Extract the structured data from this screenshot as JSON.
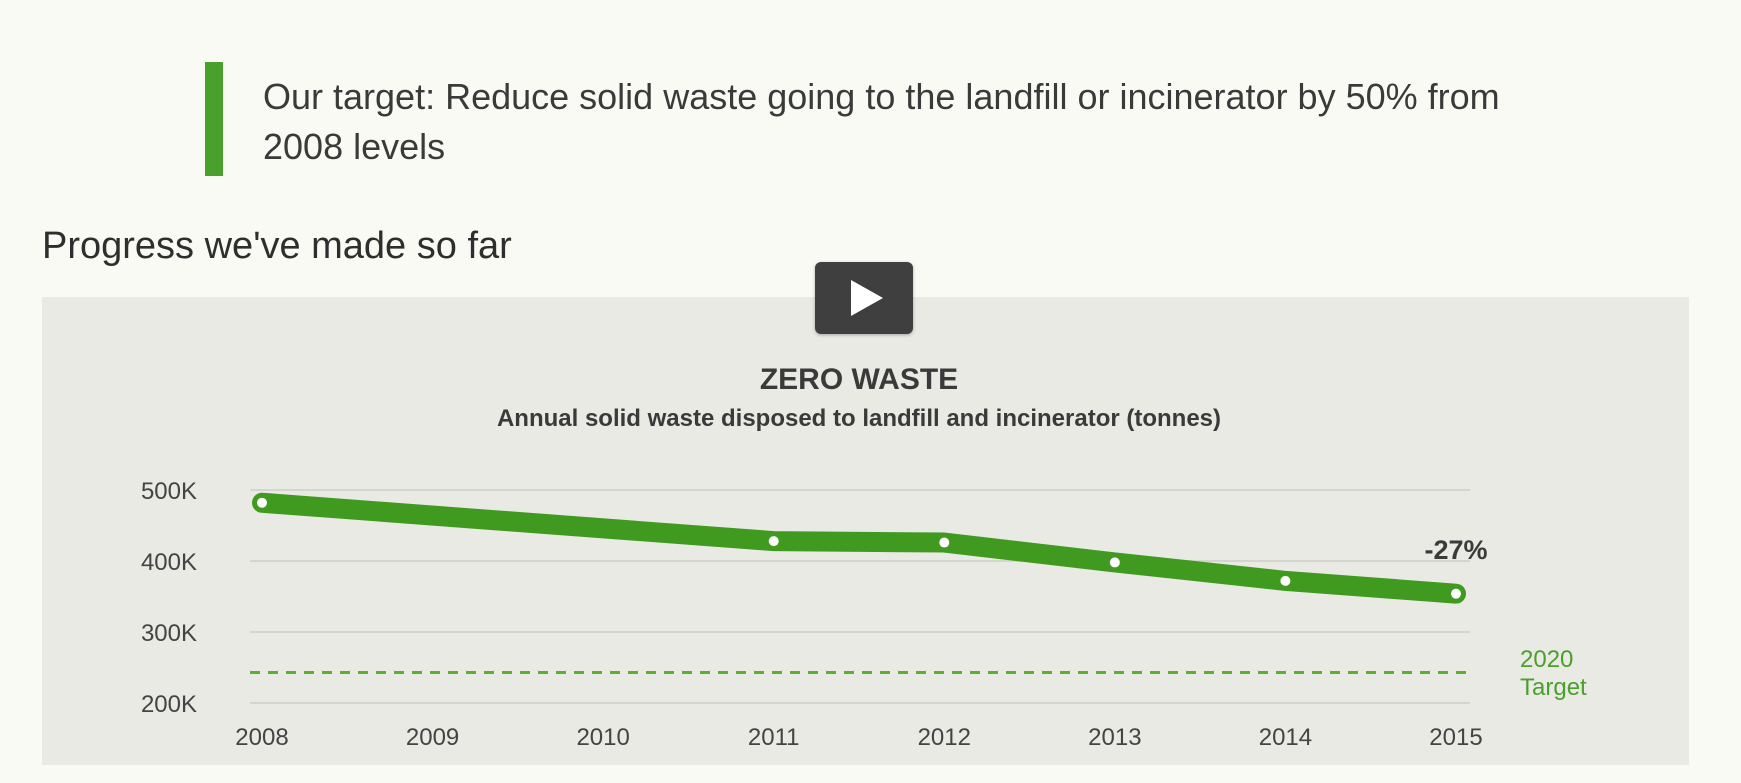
{
  "target": {
    "text": "Our target: Reduce solid waste going to the landfill or incinerator by 50% from 2008 levels"
  },
  "progress_title": "Progress we've made so far",
  "play_icon": "play-icon",
  "colors": {
    "accent": "#4aa02c",
    "line": "#3f9a1f",
    "target_label": "#4aa02c",
    "grid": "#d4d5cf",
    "panel": "#e9eae4"
  },
  "chart_data": {
    "type": "line",
    "title": "ZERO WASTE",
    "subtitle": "Annual solid waste disposed to landfill and incinerator (tonnes)",
    "x": [
      "2008",
      "2009",
      "2010",
      "2011",
      "2012",
      "2013",
      "2014",
      "2015"
    ],
    "series": [
      {
        "x": [
          "2008",
          "2011",
          "2012",
          "2013",
          "2014",
          "2015"
        ],
        "values": [
          482000,
          428000,
          426000,
          398000,
          372000,
          354000
        ]
      }
    ],
    "ylim": [
      200000,
      500000
    ],
    "yticks": [
      200000,
      300000,
      400000,
      500000
    ],
    "ytick_labels": [
      "200K",
      "300K",
      "400K",
      "500K"
    ],
    "target": {
      "value": 243000,
      "label_line1": "2020",
      "label_line2": "Target"
    },
    "annotation": {
      "text": "-27%",
      "x": "2015"
    },
    "grid": true
  }
}
